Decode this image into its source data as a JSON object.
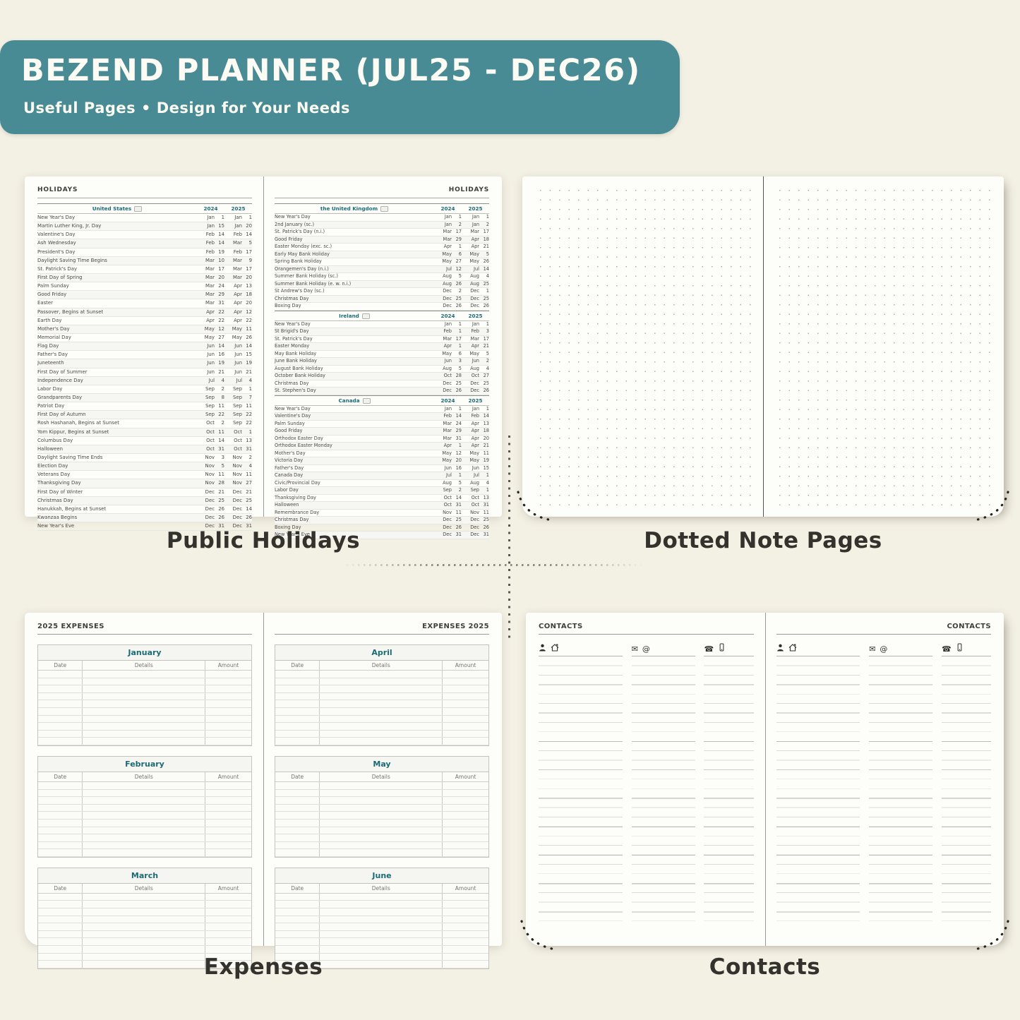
{
  "header": {
    "title": "BEZEND PLANNER (JUL25 - DEC26)",
    "subtitle": "Useful Pages  •  Design for Your Needs"
  },
  "colors": {
    "banner": "#498b94",
    "accent_teal": "#1c6b74",
    "background": "#f3f0e4"
  },
  "holidays": {
    "page_title": "HOLIDAYS",
    "caption": "Public Holidays",
    "years": [
      "2024",
      "2025"
    ],
    "left_sections": [
      {
        "country": "United States",
        "rows": [
          [
            "New Year's Day",
            "Jan",
            "1",
            "Jan",
            "1"
          ],
          [
            "Martin Luther King, Jr. Day",
            "Jan",
            "15",
            "Jan",
            "20"
          ],
          [
            "Valentine's Day",
            "Feb",
            "14",
            "Feb",
            "14"
          ],
          [
            "Ash Wednesday",
            "Feb",
            "14",
            "Mar",
            "5"
          ],
          [
            "President's Day",
            "Feb",
            "19",
            "Feb",
            "17"
          ],
          [
            "Daylight Saving Time Begins",
            "Mar",
            "10",
            "Mar",
            "9"
          ],
          [
            "St. Patrick's Day",
            "Mar",
            "17",
            "Mar",
            "17"
          ],
          [
            "First Day of Spring",
            "Mar",
            "20",
            "Mar",
            "20"
          ],
          [
            "Palm Sunday",
            "Mar",
            "24",
            "Apr",
            "13"
          ],
          [
            "Good Friday",
            "Mar",
            "29",
            "Apr",
            "18"
          ],
          [
            "Easter",
            "Mar",
            "31",
            "Apr",
            "20"
          ],
          [
            "Passover, Begins at Sunset",
            "Apr",
            "22",
            "Apr",
            "12"
          ],
          [
            "Earth Day",
            "Apr",
            "22",
            "Apr",
            "22"
          ],
          [
            "Mother's Day",
            "May",
            "12",
            "May",
            "11"
          ],
          [
            "Memorial Day",
            "May",
            "27",
            "May",
            "26"
          ],
          [
            "Flag Day",
            "Jun",
            "14",
            "Jun",
            "14"
          ],
          [
            "Father's Day",
            "Jun",
            "16",
            "Jun",
            "15"
          ],
          [
            "Juneteenth",
            "Jun",
            "19",
            "Jun",
            "19"
          ],
          [
            "First Day of Summer",
            "Jun",
            "21",
            "Jun",
            "21"
          ],
          [
            "Independence Day",
            "Jul",
            "4",
            "Jul",
            "4"
          ],
          [
            "Labor Day",
            "Sep",
            "2",
            "Sep",
            "1"
          ],
          [
            "Grandparents Day",
            "Sep",
            "8",
            "Sep",
            "7"
          ],
          [
            "Patriot Day",
            "Sep",
            "11",
            "Sep",
            "11"
          ],
          [
            "First Day of Autumn",
            "Sep",
            "22",
            "Sep",
            "22"
          ],
          [
            "Rosh Hashanah, Begins at Sunset",
            "Oct",
            "2",
            "Sep",
            "22"
          ],
          [
            "Yom Kippur, Begins at Sunset",
            "Oct",
            "11",
            "Oct",
            "1"
          ],
          [
            "Columbus Day",
            "Oct",
            "14",
            "Oct",
            "13"
          ],
          [
            "Halloween",
            "Oct",
            "31",
            "Oct",
            "31"
          ],
          [
            "Daylight Saving Time Ends",
            "Nov",
            "3",
            "Nov",
            "2"
          ],
          [
            "Election Day",
            "Nov",
            "5",
            "Nov",
            "4"
          ],
          [
            "Veterans Day",
            "Nov",
            "11",
            "Nov",
            "11"
          ],
          [
            "Thanksgiving Day",
            "Nov",
            "28",
            "Nov",
            "27"
          ],
          [
            "First Day of Winter",
            "Dec",
            "21",
            "Dec",
            "21"
          ],
          [
            "Christmas Day",
            "Dec",
            "25",
            "Dec",
            "25"
          ],
          [
            "Hanukkah, Begins at Sunset",
            "Dec",
            "26",
            "Dec",
            "14"
          ],
          [
            "Kwanzaa Begins",
            "Dec",
            "26",
            "Dec",
            "26"
          ],
          [
            "New Year's Eve",
            "Dec",
            "31",
            "Dec",
            "31"
          ]
        ]
      }
    ],
    "right_sections": [
      {
        "country": "the United Kingdom",
        "rows": [
          [
            "New Year's Day",
            "Jan",
            "1",
            "Jan",
            "1"
          ],
          [
            "2nd January (sc.)",
            "Jan",
            "2",
            "Jan",
            "2"
          ],
          [
            "St. Patrick's Day (n.i.)",
            "Mar",
            "17",
            "Mar",
            "17"
          ],
          [
            "Good Friday",
            "Mar",
            "29",
            "Apr",
            "18"
          ],
          [
            "Easter Monday (exc. sc.)",
            "Apr",
            "1",
            "Apr",
            "21"
          ],
          [
            "Early May Bank Holiday",
            "May",
            "6",
            "May",
            "5"
          ],
          [
            "Spring Bank Holiday",
            "May",
            "27",
            "May",
            "26"
          ],
          [
            "Orangemen's Day (n.i.)",
            "Jul",
            "12",
            "Jul",
            "14"
          ],
          [
            "Summer Bank Holiday (sc.)",
            "Aug",
            "5",
            "Aug",
            "4"
          ],
          [
            "Summer Bank Holiday (e. w. n.i.)",
            "Aug",
            "26",
            "Aug",
            "25"
          ],
          [
            "St Andrew's Day (sc.)",
            "Dec",
            "2",
            "Dec",
            "1"
          ],
          [
            "Christmas Day",
            "Dec",
            "25",
            "Dec",
            "25"
          ],
          [
            "Boxing Day",
            "Dec",
            "26",
            "Dec",
            "26"
          ]
        ]
      },
      {
        "country": "Ireland",
        "rows": [
          [
            "New Year's Day",
            "Jan",
            "1",
            "Jan",
            "1"
          ],
          [
            "St Brigid's Day",
            "Feb",
            "1",
            "Feb",
            "3"
          ],
          [
            "St. Patrick's Day",
            "Mar",
            "17",
            "Mar",
            "17"
          ],
          [
            "Easter Monday",
            "Apr",
            "1",
            "Apr",
            "21"
          ],
          [
            "May Bank Holiday",
            "May",
            "6",
            "May",
            "5"
          ],
          [
            "June Bank Holiday",
            "Jun",
            "3",
            "Jun",
            "2"
          ],
          [
            "August Bank Holiday",
            "Aug",
            "5",
            "Aug",
            "4"
          ],
          [
            "October Bank Holiday",
            "Oct",
            "28",
            "Oct",
            "27"
          ],
          [
            "Christmas Day",
            "Dec",
            "25",
            "Dec",
            "25"
          ],
          [
            "St. Stephen's Day",
            "Dec",
            "26",
            "Dec",
            "26"
          ]
        ]
      },
      {
        "country": "Canada",
        "rows": [
          [
            "New Year's Day",
            "Jan",
            "1",
            "Jan",
            "1"
          ],
          [
            "Valentine's Day",
            "Feb",
            "14",
            "Feb",
            "14"
          ],
          [
            "Palm Sunday",
            "Mar",
            "24",
            "Apr",
            "13"
          ],
          [
            "Good Friday",
            "Mar",
            "29",
            "Apr",
            "18"
          ],
          [
            "Orthodox Easter Day",
            "Mar",
            "31",
            "Apr",
            "20"
          ],
          [
            "Orthodox Easter Monday",
            "Apr",
            "1",
            "Apr",
            "21"
          ],
          [
            "Mother's Day",
            "May",
            "12",
            "May",
            "11"
          ],
          [
            "Victoria Day",
            "May",
            "20",
            "May",
            "19"
          ],
          [
            "Father's Day",
            "Jun",
            "16",
            "Jun",
            "15"
          ],
          [
            "Canada Day",
            "Jul",
            "1",
            "Jul",
            "1"
          ],
          [
            "Civic/Provincial Day",
            "Aug",
            "5",
            "Aug",
            "4"
          ],
          [
            "Labor Day",
            "Sep",
            "2",
            "Sep",
            "1"
          ],
          [
            "Thanksgiving Day",
            "Oct",
            "14",
            "Oct",
            "13"
          ],
          [
            "Halloween",
            "Oct",
            "31",
            "Oct",
            "31"
          ],
          [
            "Remembrance Day",
            "Nov",
            "11",
            "Nov",
            "11"
          ],
          [
            "Christmas Day",
            "Dec",
            "25",
            "Dec",
            "25"
          ],
          [
            "Boxing Day",
            "Dec",
            "26",
            "Dec",
            "26"
          ],
          [
            "New Year's Eve",
            "Dec",
            "31",
            "Dec",
            "31"
          ]
        ]
      }
    ]
  },
  "notes": {
    "caption": "Dotted Note Pages"
  },
  "expenses": {
    "caption": "Expenses",
    "left_page_title": "2025 EXPENSES",
    "right_page_title": "EXPENSES 2025",
    "columns": [
      "Date",
      "Details",
      "Amount"
    ],
    "left_months": [
      "January",
      "February",
      "March"
    ],
    "right_months": [
      "April",
      "May",
      "June"
    ],
    "empty_rows_per_month": 10
  },
  "contacts": {
    "caption": "Contacts",
    "page_title": "CONTACTS",
    "column_icons": [
      [
        "person-icon",
        "home-icon"
      ],
      [
        "mail-icon",
        "at-icon"
      ],
      [
        "phone-icon",
        "mobile-icon"
      ]
    ]
  }
}
